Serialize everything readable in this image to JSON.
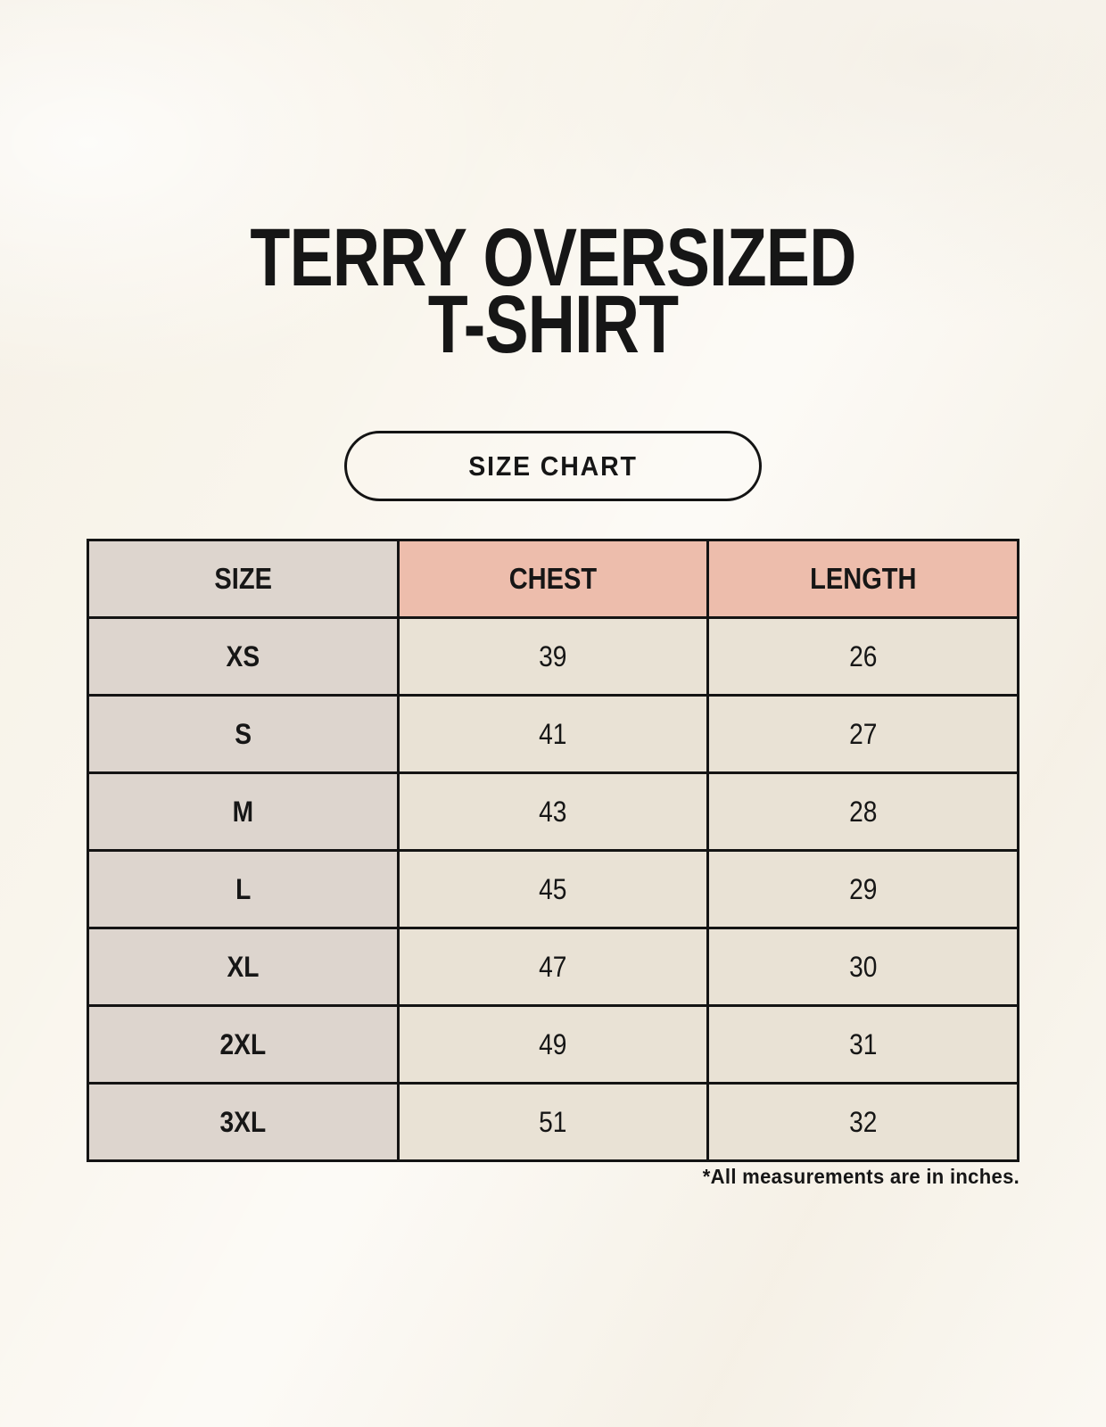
{
  "header": {
    "title_line1": "TERRY OVERSIZED",
    "title_line2": "T-SHIRT",
    "badge_label": "SIZE CHART"
  },
  "chart_data": {
    "type": "table",
    "title": "TERRY OVERSIZED T-SHIRT",
    "columns": [
      "SIZE",
      "CHEST",
      "LENGTH"
    ],
    "rows": [
      {
        "size": "XS",
        "chest": "39",
        "length": "26"
      },
      {
        "size": "S",
        "chest": "41",
        "length": "27"
      },
      {
        "size": "M",
        "chest": "43",
        "length": "28"
      },
      {
        "size": "L",
        "chest": "45",
        "length": "29"
      },
      {
        "size": "XL",
        "chest": "47",
        "length": "30"
      },
      {
        "size": "2XL",
        "chest": "49",
        "length": "31"
      },
      {
        "size": "3XL",
        "chest": "51",
        "length": "32"
      }
    ],
    "units_note": "*All measurements are in inches."
  },
  "footnote": "*All measurements are in inches.",
  "colors": {
    "page_background": "#f9f5ec",
    "header_accent_pink": "#edbdac",
    "size_column_gray": "#ddd5ce",
    "data_cell_beige": "#e9e2d5",
    "table_border": "#141414",
    "text": "#161616"
  }
}
